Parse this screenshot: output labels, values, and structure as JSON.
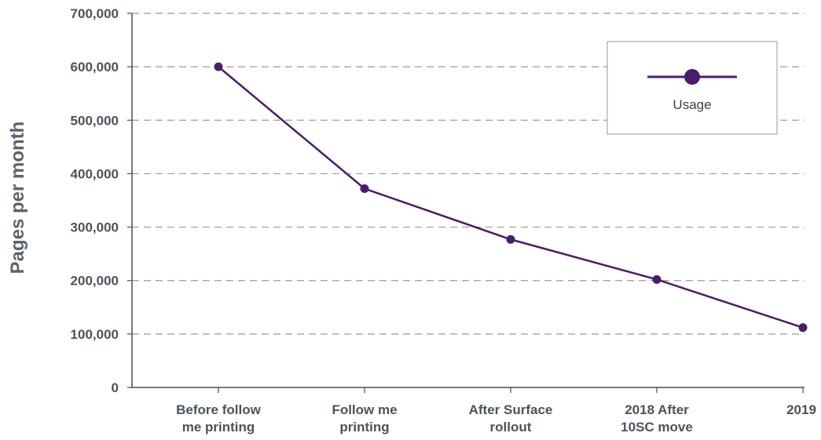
{
  "chart_data": {
    "type": "line",
    "title": "",
    "xlabel": "",
    "ylabel": "Pages per month",
    "categories": [
      [
        "Before follow",
        "me printing"
      ],
      [
        "Follow me",
        "printing"
      ],
      [
        "After Surface",
        "rollout"
      ],
      [
        "2018 After",
        "10SC move"
      ],
      [
        "2019"
      ]
    ],
    "series": [
      {
        "name": "Usage",
        "values": [
          600000,
          372000,
          277000,
          202000,
          112000
        ],
        "color": "#4a1d6b"
      }
    ],
    "ylim": [
      0,
      700000
    ],
    "yticks": [
      "0",
      "100,000",
      "200,000",
      "300,000",
      "400,000",
      "500,000",
      "600,000",
      "700,000"
    ],
    "grid": "horizontal dashed",
    "legend": {
      "position": "top-right",
      "label": "Usage"
    }
  }
}
